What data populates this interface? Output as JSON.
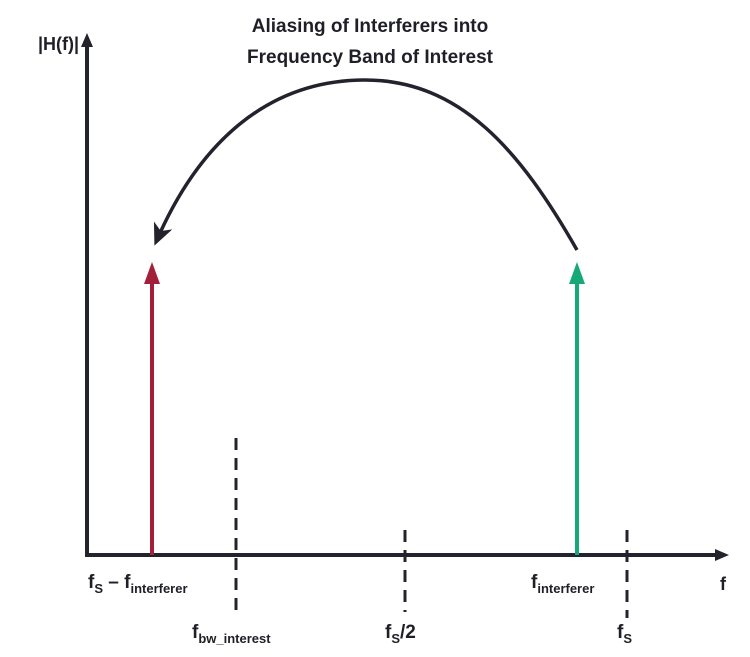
{
  "title": {
    "line1": "Aliasing of Interferers into",
    "line2": "Frequency Band of Interest"
  },
  "axes": {
    "y_label": "|H(f)|",
    "x_label": "f"
  },
  "labels": {
    "alias": {
      "main": "f",
      "sub": "S",
      "minus": " – f",
      "sub2": "interferer"
    },
    "interferer": {
      "main": "f",
      "sub": "interferer"
    },
    "bw": {
      "main": "f",
      "sub": "bw_interest"
    },
    "half": {
      "main": "f",
      "sub": "S",
      "suffix": "/2"
    },
    "fs": {
      "main": "f",
      "sub": "S"
    }
  },
  "colors": {
    "axis": "#23232d",
    "alias_arrow": "#a3203a",
    "interferer_arrow": "#17a878",
    "curve": "#23232d"
  }
}
